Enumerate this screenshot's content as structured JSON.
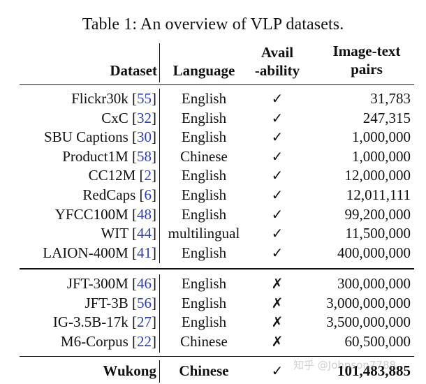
{
  "caption": "Table 1:  An overview of VLP datasets.",
  "headers": {
    "dataset": "Dataset",
    "language": "Language",
    "availability_line1": "Avail",
    "availability_line2": "-ability",
    "pairs_line1": "Image-text",
    "pairs_line2": "pairs"
  },
  "available_rows": [
    {
      "name": "Flickr30k ",
      "cite": "55",
      "language": "English",
      "availability": "✓",
      "pairs": "31,783"
    },
    {
      "name": "CxC ",
      "cite": "32",
      "language": "English",
      "availability": "✓",
      "pairs": "247,315"
    },
    {
      "name": "SBU Captions ",
      "cite": "30",
      "language": "English",
      "availability": "✓",
      "pairs": "1,000,000"
    },
    {
      "name": "Product1M ",
      "cite": "58",
      "language": "Chinese",
      "availability": "✓",
      "pairs": "1,000,000"
    },
    {
      "name": "CC12M ",
      "cite": "2",
      "language": "English",
      "availability": "✓",
      "pairs": "12,000,000"
    },
    {
      "name": "RedCaps ",
      "cite": "6",
      "language": "English",
      "availability": "✓",
      "pairs": "12,011,111"
    },
    {
      "name": "YFCC100M ",
      "cite": "48",
      "language": "English",
      "availability": "✓",
      "pairs": "99,200,000"
    },
    {
      "name": "WIT ",
      "cite": "44",
      "language": "multilingual",
      "availability": "✓",
      "pairs": "11,500,000"
    },
    {
      "name": "LAION-400M ",
      "cite": "41",
      "language": "English",
      "availability": "✓",
      "pairs": "400,000,000"
    }
  ],
  "unavailable_rows": [
    {
      "name": "JFT-300M ",
      "cite": "46",
      "language": "English",
      "availability": "✗",
      "pairs": "300,000,000"
    },
    {
      "name": "JFT-3B ",
      "cite": "56",
      "language": "English",
      "availability": "✗",
      "pairs": "3,000,000,000"
    },
    {
      "name": "IG-3.5B-17k ",
      "cite": "27",
      "language": "English",
      "availability": "✗",
      "pairs": "3,500,000,000"
    },
    {
      "name": "M6-Corpus ",
      "cite": "22",
      "language": "Chinese",
      "availability": "✗",
      "pairs": "60,500,000"
    }
  ],
  "wukong_row": {
    "name": "Wukong",
    "language": "Chinese",
    "availability": "✓",
    "pairs": "101,483,885"
  },
  "watermark": "知乎 @Johnson7788"
}
